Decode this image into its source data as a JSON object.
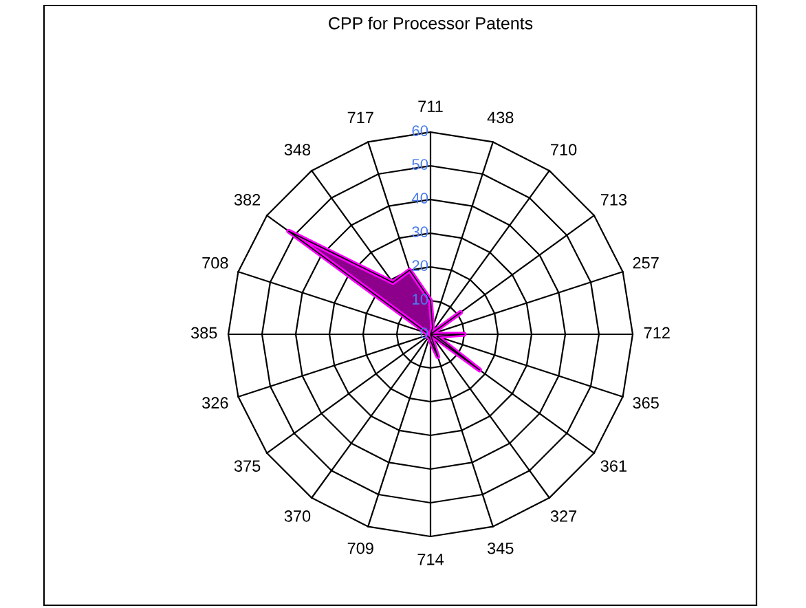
{
  "chart_data": {
    "type": "radar",
    "title": "CPP for Processor Patents",
    "categories": [
      "711",
      "438",
      "710",
      "713",
      "257",
      "712",
      "365",
      "361",
      "327",
      "345",
      "714",
      "709",
      "370",
      "375",
      "326",
      "385",
      "708",
      "382",
      "348",
      "717"
    ],
    "series": [
      {
        "color": "#ff00ff",
        "values": [
          10,
          2,
          0,
          11,
          0,
          10,
          2,
          18,
          0,
          7,
          2,
          1,
          1,
          1,
          1,
          1,
          1,
          52,
          19,
          20
        ]
      }
    ],
    "ylim": [
      0,
      60
    ],
    "yticks": [
      0,
      10,
      20,
      30,
      40,
      50,
      60
    ]
  }
}
